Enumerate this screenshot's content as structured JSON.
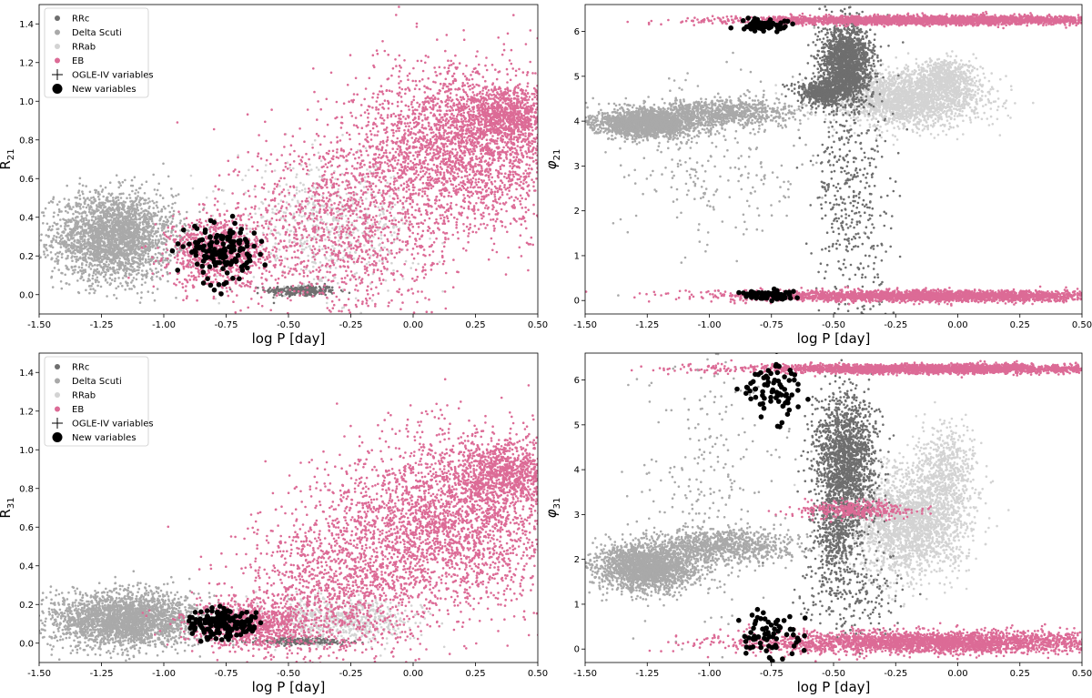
{
  "colors": {
    "RRc": "#6e6e6e",
    "DeltaScuti": "#a9a9a9",
    "RRab": "#d3d3d3",
    "EB": "#dc6b96",
    "new": "#000000"
  },
  "chart_data": [
    {
      "id": "R21",
      "type": "scatter",
      "xlabel": "log P [day]",
      "ylabel": "R",
      "ylabel_sub": "21",
      "xlim": [
        -1.5,
        0.5
      ],
      "ylim": [
        -0.1,
        1.5
      ],
      "xticks": [
        "-1.50",
        "-1.25",
        "-1.00",
        "-0.75",
        "-0.50",
        "-0.25",
        "0.00",
        "0.25",
        "0.50"
      ],
      "yticks": [
        "0.0",
        "0.2",
        "0.4",
        "0.6",
        "0.8",
        "1.0",
        "1.2",
        "1.4"
      ],
      "legend": {
        "position": "top-left",
        "entries": [
          "RRc",
          "Delta Scuti",
          "RRab",
          "EB",
          "OGLE-IV variables",
          "New variables"
        ]
      },
      "series": [
        {
          "name": "RRc",
          "clusters": [
            {
              "cx": -0.45,
              "cy": 0.02,
              "sx": 0.07,
              "sy": 0.015,
              "n": 280
            }
          ]
        },
        {
          "name": "Delta Scuti",
          "clusters": [
            {
              "cx": -1.2,
              "cy": 0.3,
              "sx": 0.12,
              "sy": 0.11,
              "n": 2600
            }
          ]
        },
        {
          "name": "RRab",
          "clusters": [
            {
              "cx": -0.35,
              "cy": 0.35,
              "sx": 0.18,
              "sy": 0.16,
              "n": 600
            }
          ]
        },
        {
          "name": "EB",
          "clusters": [
            {
              "cx": -0.78,
              "cy": 0.22,
              "sx": 0.1,
              "sy": 0.09,
              "n": 900
            },
            {
              "cx": -0.3,
              "cy": 0.35,
              "sx": 0.2,
              "sy": 0.25,
              "n": 1200
            },
            {
              "cx": 0.2,
              "cy": 0.75,
              "sx": 0.22,
              "sy": 0.22,
              "n": 2600
            },
            {
              "cx": 0.38,
              "cy": 0.92,
              "sx": 0.1,
              "sy": 0.07,
              "n": 900
            }
          ]
        },
        {
          "name": "New variables",
          "clusters": [
            {
              "cx": -0.77,
              "cy": 0.22,
              "sx": 0.07,
              "sy": 0.07,
              "n": 150
            }
          ]
        }
      ]
    },
    {
      "id": "phi21",
      "type": "scatter",
      "xlabel": "log P [day]",
      "ylabel": "φ",
      "ylabel_sub": "21",
      "xlim": [
        -1.5,
        0.5
      ],
      "ylim": [
        -0.3,
        6.6
      ],
      "xticks": [
        "-1.50",
        "-1.25",
        "-1.00",
        "-0.75",
        "-0.50",
        "-0.25",
        "0.00",
        "0.25",
        "0.50"
      ],
      "yticks": [
        "0",
        "1",
        "2",
        "3",
        "4",
        "5",
        "6"
      ],
      "series": [
        {
          "name": "Delta Scuti",
          "clusters": [
            {
              "cx": -1.25,
              "cy": 3.95,
              "sx": 0.1,
              "sy": 0.15,
              "n": 2000
            },
            {
              "cx": -0.95,
              "cy": 4.2,
              "sx": 0.15,
              "sy": 0.15,
              "n": 900
            },
            {
              "cx": -1.0,
              "cy": 3.0,
              "sx": 0.2,
              "sy": 1.0,
              "n": 250
            }
          ]
        },
        {
          "name": "RRab",
          "clusters": [
            {
              "cx": -0.2,
              "cy": 4.5,
              "sx": 0.15,
              "sy": 0.3,
              "n": 2200
            },
            {
              "cx": -0.05,
              "cy": 5.0,
              "sx": 0.06,
              "sy": 0.2,
              "n": 500
            }
          ]
        },
        {
          "name": "RRc",
          "clusters": [
            {
              "cx": -0.45,
              "cy": 5.3,
              "sx": 0.05,
              "sy": 0.45,
              "n": 1800
            },
            {
              "cx": -0.55,
              "cy": 4.65,
              "sx": 0.05,
              "sy": 0.15,
              "n": 500
            },
            {
              "cx": -0.42,
              "cy": 2.0,
              "sx": 0.08,
              "sy": 1.5,
              "n": 450
            }
          ]
        },
        {
          "name": "EB",
          "clusters": [
            {
              "cx": -0.1,
              "cy": 6.25,
              "sx": 0.38,
              "sy": 0.05,
              "n": 2800
            },
            {
              "cx": -0.1,
              "cy": 0.1,
              "sx": 0.38,
              "sy": 0.06,
              "n": 2800
            }
          ]
        },
        {
          "name": "New variables",
          "clusters": [
            {
              "cx": -0.77,
              "cy": 6.15,
              "sx": 0.05,
              "sy": 0.08,
              "n": 75
            },
            {
              "cx": -0.77,
              "cy": 0.12,
              "sx": 0.05,
              "sy": 0.06,
              "n": 75
            }
          ]
        }
      ]
    },
    {
      "id": "R31",
      "type": "scatter",
      "xlabel": "log P [day]",
      "ylabel": "R",
      "ylabel_sub": "31",
      "xlim": [
        -1.5,
        0.5
      ],
      "ylim": [
        -0.1,
        1.5
      ],
      "xticks": [
        "-1.50",
        "-1.25",
        "-1.00",
        "-0.75",
        "-0.50",
        "-0.25",
        "0.00",
        "0.25",
        "0.50"
      ],
      "yticks": [
        "0.0",
        "0.2",
        "0.4",
        "0.6",
        "0.8",
        "1.0",
        "1.2",
        "1.4"
      ],
      "legend": {
        "position": "top-left",
        "entries": [
          "RRc",
          "Delta Scuti",
          "RRab",
          "EB",
          "OGLE-IV variables",
          "New variables"
        ]
      },
      "series": [
        {
          "name": "RRc",
          "clusters": [
            {
              "cx": -0.45,
              "cy": 0.01,
              "sx": 0.08,
              "sy": 0.01,
              "n": 250
            }
          ]
        },
        {
          "name": "Delta Scuti",
          "clusters": [
            {
              "cx": -1.15,
              "cy": 0.12,
              "sx": 0.15,
              "sy": 0.07,
              "n": 2600
            }
          ]
        },
        {
          "name": "RRab",
          "clusters": [
            {
              "cx": -0.3,
              "cy": 0.12,
              "sx": 0.15,
              "sy": 0.06,
              "n": 600
            }
          ]
        },
        {
          "name": "EB",
          "clusters": [
            {
              "cx": -0.65,
              "cy": 0.1,
              "sx": 0.12,
              "sy": 0.06,
              "n": 900
            },
            {
              "cx": -0.3,
              "cy": 0.3,
              "sx": 0.2,
              "sy": 0.22,
              "n": 1300
            },
            {
              "cx": 0.15,
              "cy": 0.65,
              "sx": 0.22,
              "sy": 0.22,
              "n": 2500
            },
            {
              "cx": 0.38,
              "cy": 0.88,
              "sx": 0.1,
              "sy": 0.08,
              "n": 800
            }
          ]
        },
        {
          "name": "New variables",
          "clusters": [
            {
              "cx": -0.77,
              "cy": 0.1,
              "sx": 0.07,
              "sy": 0.04,
              "n": 150
            }
          ]
        }
      ]
    },
    {
      "id": "phi31",
      "type": "scatter",
      "xlabel": "log P [day]",
      "ylabel": "φ",
      "ylabel_sub": "31",
      "xlim": [
        -1.5,
        0.5
      ],
      "ylim": [
        -0.3,
        6.6
      ],
      "xticks": [
        "-1.50",
        "-1.25",
        "-1.00",
        "-0.75",
        "-0.50",
        "-0.25",
        "0.00",
        "0.25",
        "0.50"
      ],
      "yticks": [
        "0",
        "1",
        "2",
        "3",
        "4",
        "5",
        "6"
      ],
      "series": [
        {
          "name": "Delta Scuti",
          "clusters": [
            {
              "cx": -1.25,
              "cy": 1.8,
              "sx": 0.1,
              "sy": 0.25,
              "n": 2000
            },
            {
              "cx": -0.95,
              "cy": 2.3,
              "sx": 0.15,
              "sy": 0.2,
              "n": 900
            },
            {
              "cx": -1.0,
              "cy": 3.5,
              "sx": 0.15,
              "sy": 1.6,
              "n": 250
            }
          ]
        },
        {
          "name": "RRab",
          "clusters": [
            {
              "cx": -0.2,
              "cy": 2.8,
              "sx": 0.12,
              "sy": 0.6,
              "n": 2200
            },
            {
              "cx": -0.05,
              "cy": 4.0,
              "sx": 0.06,
              "sy": 0.5,
              "n": 500
            }
          ]
        },
        {
          "name": "RRc",
          "clusters": [
            {
              "cx": -0.45,
              "cy": 4.1,
              "sx": 0.06,
              "sy": 0.8,
              "n": 1800
            },
            {
              "cx": -0.5,
              "cy": 2.5,
              "sx": 0.04,
              "sy": 0.4,
              "n": 300
            },
            {
              "cx": -0.45,
              "cy": 1.2,
              "sx": 0.1,
              "sy": 0.5,
              "n": 250
            }
          ]
        },
        {
          "name": "EB",
          "clusters": [
            {
              "cx": -0.1,
              "cy": 6.25,
              "sx": 0.38,
              "sy": 0.05,
              "n": 2800
            },
            {
              "cx": -0.1,
              "cy": 0.15,
              "sx": 0.38,
              "sy": 0.12,
              "n": 2800
            },
            {
              "cx": -0.4,
              "cy": 3.1,
              "sx": 0.12,
              "sy": 0.1,
              "n": 350
            }
          ]
        },
        {
          "name": "New variables",
          "clusters": [
            {
              "cx": -0.75,
              "cy": 5.8,
              "sx": 0.06,
              "sy": 0.35,
              "n": 75
            },
            {
              "cx": -0.75,
              "cy": 0.3,
              "sx": 0.06,
              "sy": 0.3,
              "n": 75
            }
          ]
        }
      ]
    }
  ]
}
